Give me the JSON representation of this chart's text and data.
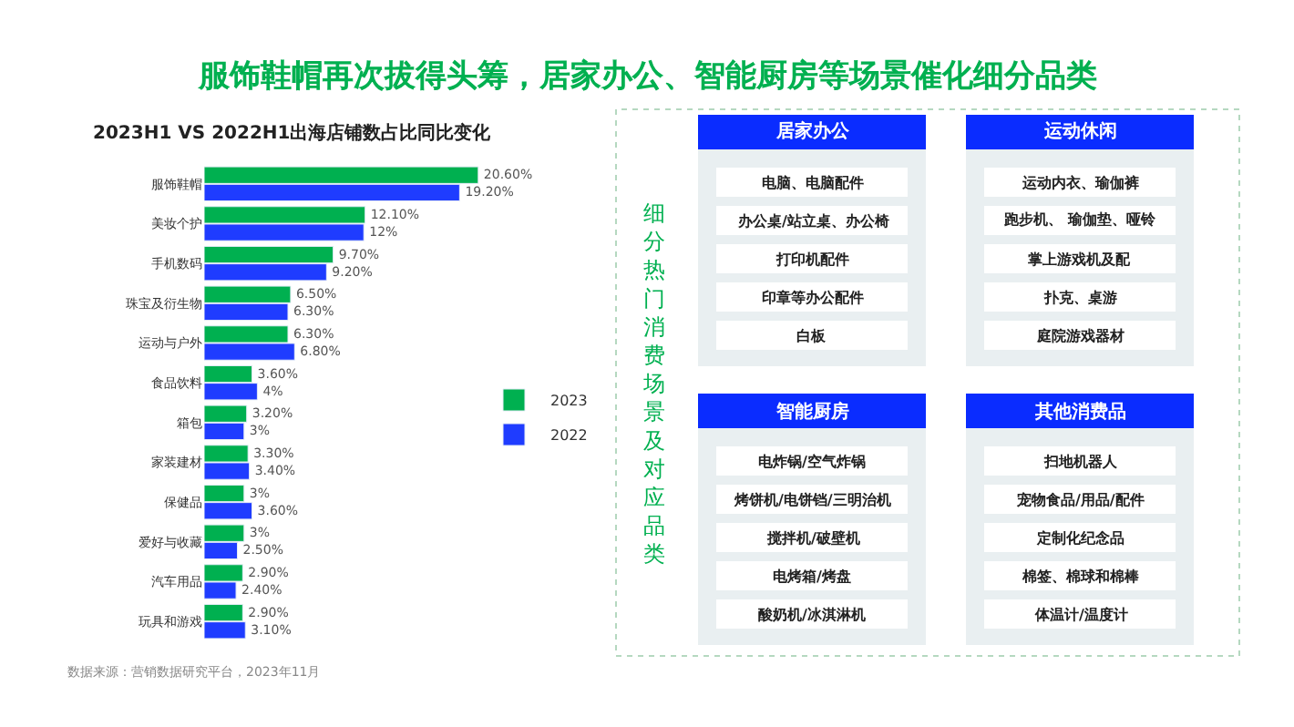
{
  "chart_data": [
    {
      "type": "bar",
      "orientation": "horizontal",
      "title": "服饰鞋帽再次拔得头筹，居家办公、智能厨房等场景催化细分品类",
      "subtitle": "2023H1 VS 2022H1出海店铺数占比同比变化",
      "categories": [
        "服饰鞋帽",
        "美妆个护",
        "手机数码",
        "珠宝及衍生物",
        "运动与户外",
        "食品饮料",
        "箱包",
        "家装建材",
        "保健品",
        "爱好与收藏",
        "汽车用品",
        "玩具和游戏"
      ],
      "series": [
        {
          "name": "2023",
          "color": "#00b050",
          "values": [
            20.6,
            12.1,
            9.7,
            6.5,
            6.3,
            3.6,
            3.2,
            3.3,
            3,
            3,
            2.9,
            2.9
          ],
          "value_labels": [
            "20.60%",
            "12.10%",
            "9.70%",
            "6.50%",
            "6.30%",
            "3.60%",
            "3.20%",
            "3.30%",
            "3%",
            "3%",
            "2.90%",
            "2.90%"
          ]
        },
        {
          "name": "2022",
          "color": "#1f3cff",
          "values": [
            19.2,
            12,
            9.2,
            6.3,
            6.8,
            4,
            3,
            3.4,
            3.6,
            2.5,
            2.4,
            3.1
          ],
          "value_labels": [
            "19.20%",
            "12%",
            "9.20%",
            "6.30%",
            "6.80%",
            "4%",
            "3%",
            "3.40%",
            "3.60%",
            "2.50%",
            "2.40%",
            "3.10%"
          ]
        }
      ],
      "legend": "right",
      "tick_labels": "y",
      "annotations": [
        "数据来源：营销数据研究平台，2023年11月"
      ]
    },
    {
      "type": "other",
      "title": "细分热门消费场景及对应品类",
      "annotations": [
        "居家办公",
        "电脑、电脑配件",
        "办公桌/站立桌、办公椅",
        "打印机配件",
        "印章等办公配件",
        "白板",
        "运动休闲",
        "运动内衣、瑜伽裤",
        "跑步机、 瑜伽垫、哑铃",
        "掌上游戏机及配",
        "扑克、桌游",
        "庭院游戏器材",
        "智能厨房",
        "电炸锅/空气炸锅",
        "烤饼机/电饼铛/三明治机",
        "搅拌机/破壁机",
        "电烤箱/烤盘",
        "酸奶机/冰淇淋机",
        "其他消费品",
        "扫地机器人",
        "宠物食品/用品/配件",
        "定制化纪念品",
        "棉签、棉球和棉棒",
        "体温计/温度计"
      ]
    }
  ]
}
